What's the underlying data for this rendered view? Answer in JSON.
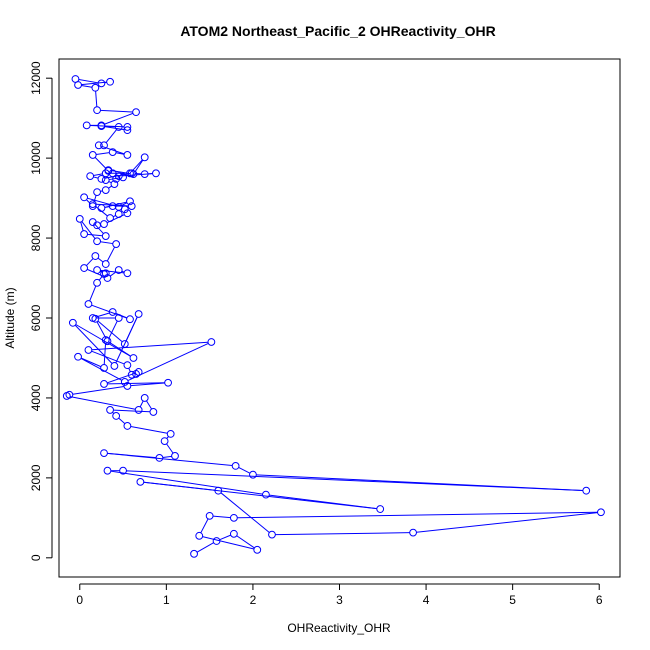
{
  "chart_data": {
    "type": "line",
    "title": "ATOM2 Northeast_Pacific_2 OHReactivity_OHR",
    "xlabel": "OHReactivity_OHR",
    "ylabel": "Altitude (m)",
    "xlim": [
      -0.24,
      6.24
    ],
    "ylim": [
      -480,
      12480
    ],
    "xticks": [
      0,
      1,
      2,
      3,
      4,
      5,
      6
    ],
    "yticks": [
      0,
      2000,
      4000,
      6000,
      8000,
      10000,
      12000
    ],
    "grid": false,
    "color": "#0000ff",
    "marker": "open-circle",
    "series": [
      {
        "x": [
          -0.05,
          0.25,
          0.35,
          -0.02,
          0.18,
          0.2,
          0.65,
          0.25,
          0.08,
          0.55,
          0.55,
          0.25,
          0.45,
          0.28,
          0.22,
          0.55,
          0.38,
          0.15,
          0.33,
          0.33,
          0.62,
          0.75,
          0.58,
          0.3,
          0.12,
          0.25,
          0.6,
          0.75,
          0.88,
          0.45,
          0.42,
          0.38,
          0.5,
          0.3,
          0.4,
          0.3,
          0.2,
          0.15,
          0.05,
          0.45,
          0.58,
          0.25,
          0.38,
          0.6,
          0.15,
          0.35,
          0.45,
          0.52,
          0.55,
          0.28,
          0.2,
          0.15,
          0.3,
          0.05,
          0.0,
          0.2,
          0.42,
          0.3,
          0.18,
          0.05,
          0.32,
          0.45,
          0.55,
          0.2,
          0.3,
          0.28,
          0.2,
          0.1,
          0.58,
          0.38,
          0.15,
          0.45,
          0.32,
          0.18,
          0.52,
          0.68,
          0.4,
          -0.08,
          0.62,
          0.3,
          0.28,
          -0.02,
          0.52,
          1.52,
          0.1,
          0.55,
          0.6,
          0.65,
          0.68,
          0.28,
          1.02,
          0.55,
          -0.12,
          -0.15,
          0.68,
          0.75,
          0.85,
          0.35,
          0.42,
          0.55,
          1.05,
          0.98,
          1.1,
          0.92,
          0.28,
          1.8,
          2.0,
          5.85,
          0.5,
          0.32,
          2.15,
          3.47,
          0.7,
          1.6,
          2.22,
          3.85,
          6.02,
          1.78,
          1.5,
          1.38,
          2.05,
          1.78,
          1.58,
          1.32
        ]
      }
    ]
  },
  "y_values": [
    11980,
    11870,
    11910,
    11830,
    11760,
    11200,
    11150,
    10820,
    10820,
    10780,
    10700,
    10800,
    10780,
    10320,
    10320,
    10080,
    10150,
    10080,
    9680,
    9700,
    9600,
    10020,
    9620,
    9620,
    9550,
    9480,
    9620,
    9600,
    9620,
    9550,
    9480,
    9620,
    9520,
    9450,
    9350,
    9200,
    9150,
    8800,
    9020,
    8780,
    8920,
    8750,
    8800,
    8800,
    8850,
    8500,
    8600,
    8720,
    8620,
    8350,
    8320,
    8400,
    8050,
    8100,
    8480,
    7920,
    7850,
    7350,
    7550,
    7250,
    7000,
    7200,
    7120,
    7200,
    7120,
    7100,
    6880,
    6350,
    5970,
    6150,
    6000,
    6000,
    5420,
    5980,
    5350,
    6100,
    4800,
    5880,
    5000,
    5450,
    4750,
    5030,
    4400,
    5400,
    5200,
    4820,
    4580,
    4600,
    4650,
    4350,
    4380,
    4300,
    4080,
    4050,
    3700,
    4000,
    3650,
    3700,
    3550,
    3300,
    3100,
    2920,
    2550,
    2500,
    2620,
    2300,
    2080,
    1680,
    2180,
    2180,
    1580,
    1220,
    1900,
    1680,
    580,
    630,
    1140,
    1000,
    1050,
    550,
    200,
    600,
    420,
    100
  ]
}
